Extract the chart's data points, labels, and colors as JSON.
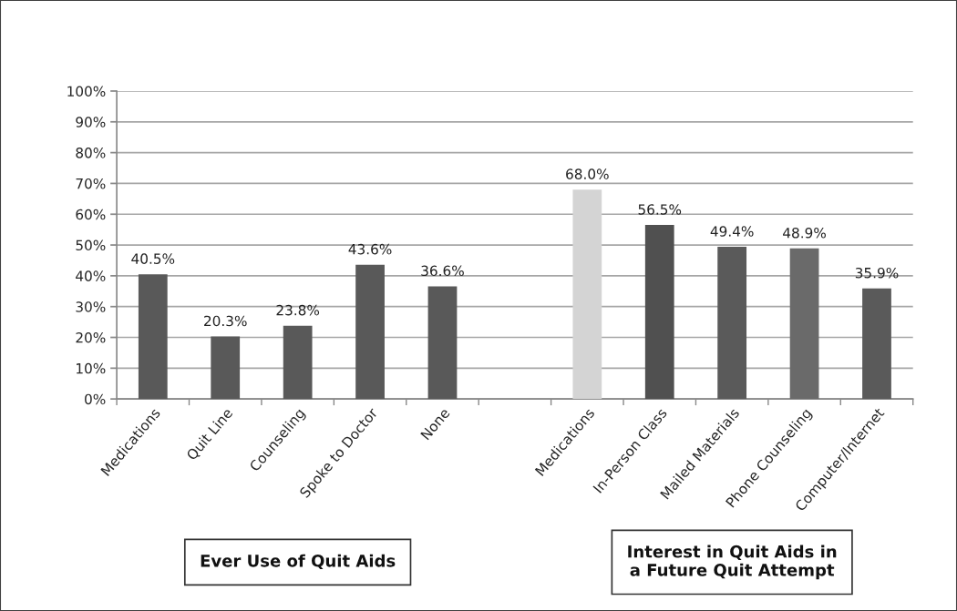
{
  "chart_data": {
    "type": "bar",
    "categories": [
      "Medications",
      "Quit Line",
      "Counseling",
      "Spoke to Doctor",
      "None",
      null,
      "Medications",
      "In-Person Class",
      "Mailed Materials",
      "Phone Counseling",
      "Computer/Internet"
    ],
    "values": [
      40.5,
      20.3,
      23.8,
      43.6,
      36.6,
      null,
      68.0,
      56.5,
      49.4,
      48.9,
      35.9
    ],
    "colors": [
      "#595959",
      "#595959",
      "#595959",
      "#595959",
      "#595959",
      null,
      "#d4d4d4",
      "#505050",
      "#5a5a5a",
      "#6a6a6a",
      "#5a5a5a"
    ],
    "value_labels": [
      "40.5%",
      "20.3%",
      "23.8%",
      "43.6%",
      "36.6%",
      null,
      "68.0%",
      "56.5%",
      "49.4%",
      "48.9%",
      "35.9%"
    ],
    "ylim": [
      0,
      100
    ],
    "yticks": [
      {
        "value": 0,
        "label": "0%"
      },
      {
        "value": 10,
        "label": "10%"
      },
      {
        "value": 20,
        "label": "20%"
      },
      {
        "value": 30,
        "label": "30%"
      },
      {
        "value": 40,
        "label": "40%"
      },
      {
        "value": 50,
        "label": "50%"
      },
      {
        "value": 60,
        "label": "60%"
      },
      {
        "value": 70,
        "label": "70%"
      },
      {
        "value": 80,
        "label": "80%"
      },
      {
        "value": 90,
        "label": "90%"
      },
      {
        "value": 100,
        "label": "100%"
      }
    ],
    "grid": "y",
    "legend": false,
    "annotations": [
      "Ever Use of Quit Aids",
      "Interest in Quit Aids in\na Future Quit Attempt"
    ]
  }
}
